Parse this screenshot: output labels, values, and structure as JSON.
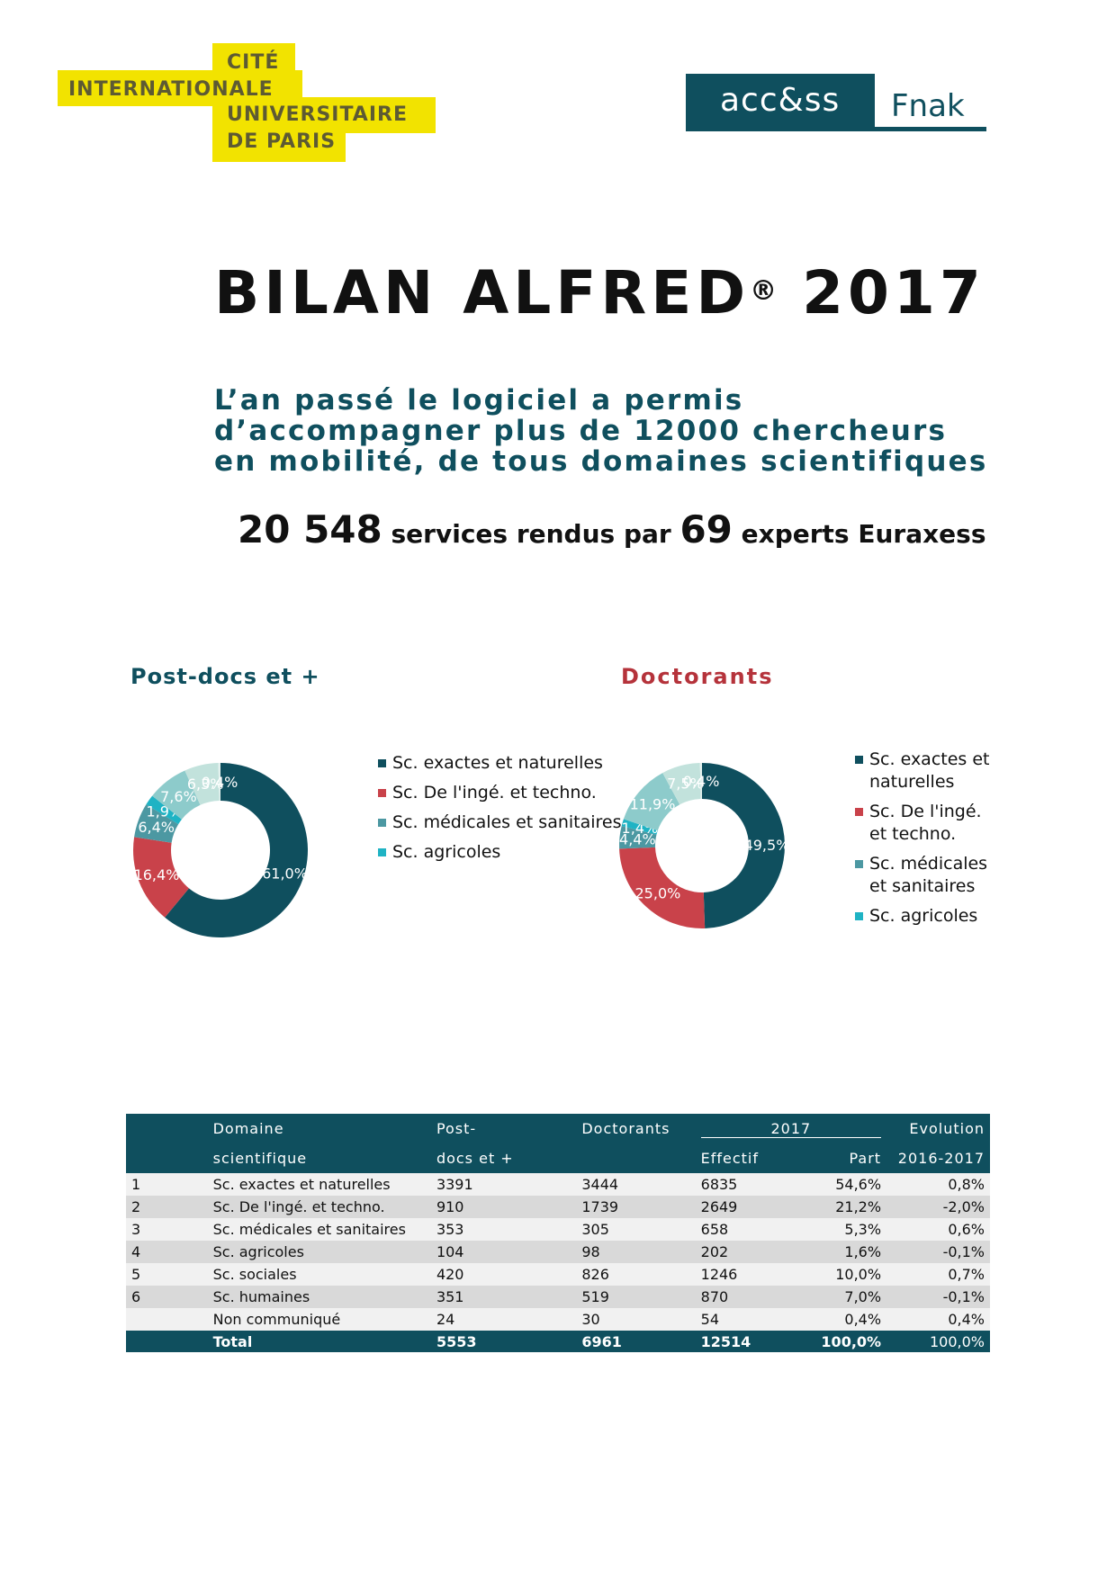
{
  "logos": {
    "ciup": {
      "line1": "CITÉ",
      "line2": "INTERNATIONALE",
      "line3": "UNIVERSITAIRE",
      "line4": "DE PARIS"
    },
    "access": "acc&ss",
    "fnak": "Fnak"
  },
  "title": {
    "main": "BILAN ALFRED",
    "reg": "®",
    "year": "2017"
  },
  "subtitle": "L’an passé le logiciel a permis d’accompagner plus de 12000 chercheurs en mobilité, de tous domaines scientifiques",
  "stats": {
    "services": "20 548",
    "services_label": "services rendus par",
    "experts": "69",
    "experts_label": "experts Euraxess"
  },
  "colors": {
    "exactes": "#0f4f5e",
    "inge": "#c9424a",
    "medicales": "#4c98a2",
    "agricoles": "#1fb3c4",
    "sociales": "#8dcbcb",
    "humaines": "#c2e2dc",
    "nc": "#e3f1ee"
  },
  "legend_items": [
    {
      "label": "Sc. exactes et naturelles",
      "color": "#0f4f5e"
    },
    {
      "label": "Sc. De l'ingé. et techno.",
      "color": "#c9424a"
    },
    {
      "label": "Sc. médicales et sanitaires",
      "color": "#4c98a2"
    },
    {
      "label": "Sc. agricoles",
      "color": "#1fb3c4"
    }
  ],
  "chart_data": [
    {
      "type": "pie",
      "title": "Post-docs et +",
      "categories": [
        "Sc. exactes et naturelles",
        "Sc. De l'ingé. et techno.",
        "Sc. médicales et sanitaires",
        "Sc. agricoles",
        "Sc. sociales",
        "Sc. humaines",
        "Non communiqué"
      ],
      "values": [
        61.0,
        16.4,
        6.4,
        1.9,
        7.6,
        6.3,
        0.4
      ],
      "labels": [
        "61,0%",
        "16,4%",
        "6,4%",
        "1,9%",
        "7,6%",
        "6,3%",
        "0,4%"
      ],
      "colors": [
        "#0f4f5e",
        "#c9424a",
        "#4c98a2",
        "#1fb3c4",
        "#8dcbcb",
        "#c2e2dc",
        "#e3f1ee"
      ]
    },
    {
      "type": "pie",
      "title": "Doctorants",
      "categories": [
        "Sc. exactes et naturelles",
        "Sc. De l'ingé. et techno.",
        "Sc. médicales et sanitaires",
        "Sc. agricoles",
        "Sc. sociales",
        "Sc. humaines",
        "Non communiqué"
      ],
      "values": [
        49.5,
        25.0,
        4.4,
        1.4,
        11.9,
        7.5,
        0.4
      ],
      "labels": [
        "49,5%",
        "25,0%",
        "4,4%",
        "1,4%",
        "11,9%",
        "7,5%",
        "0,4%"
      ],
      "colors": [
        "#0f4f5e",
        "#c9424a",
        "#4c98a2",
        "#1fb3c4",
        "#8dcbcb",
        "#c2e2dc",
        "#e3f1ee"
      ]
    }
  ],
  "table": {
    "headers": {
      "domaine1": "Domaine",
      "domaine2": "scientifique",
      "post1": "Post-",
      "post2": "docs et +",
      "doct": "Doctorants",
      "y2017": "2017",
      "effectif": "Effectif",
      "part": "Part",
      "evol1": "Evolution",
      "evol2": "2016-2017"
    },
    "rows": [
      {
        "n": "1",
        "domaine": "Sc. exactes et naturelles",
        "post": "3391",
        "doct": "3444",
        "effectif": "6835",
        "part": "54,6%",
        "evol": "0,8%"
      },
      {
        "n": "2",
        "domaine": "Sc. De l'ingé. et techno.",
        "post": "910",
        "doct": "1739",
        "effectif": "2649",
        "part": "21,2%",
        "evol": "-2,0%"
      },
      {
        "n": "3",
        "domaine": "Sc. médicales et sanitaires",
        "post": "353",
        "doct": "305",
        "effectif": "658",
        "part": "5,3%",
        "evol": "0,6%"
      },
      {
        "n": "4",
        "domaine": "Sc. agricoles",
        "post": "104",
        "doct": "98",
        "effectif": "202",
        "part": "1,6%",
        "evol": "-0,1%"
      },
      {
        "n": "5",
        "domaine": "Sc. sociales",
        "post": "420",
        "doct": "826",
        "effectif": "1246",
        "part": "10,0%",
        "evol": "0,7%"
      },
      {
        "n": "6",
        "domaine": "Sc. humaines",
        "post": "351",
        "doct": "519",
        "effectif": "870",
        "part": "7,0%",
        "evol": "-0,1%"
      },
      {
        "n": "",
        "domaine": "Non communiqué",
        "post": "24",
        "doct": "30",
        "effectif": "54",
        "part": "0,4%",
        "evol": "0,4%"
      }
    ],
    "total": {
      "label": "Total",
      "post": "5553",
      "doct": "6961",
      "effectif": "12514",
      "part": "100,0%",
      "evol": "100,0%"
    }
  }
}
